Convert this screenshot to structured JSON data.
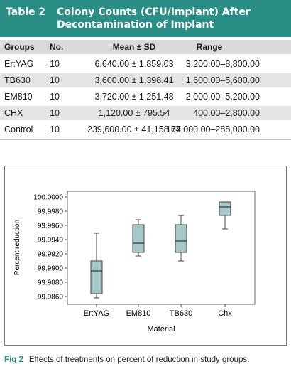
{
  "table": {
    "label": "Table 2",
    "title_line1": "Colony Counts (CFU/Implant) After",
    "title_line2": "Decontamination of Implant",
    "headers": {
      "groups": "Groups",
      "no": "No.",
      "mean": "Mean ± SD",
      "range": "Range"
    },
    "rows": [
      {
        "group": "Er:YAG",
        "no": "10",
        "mean": "6,640.00 ± 1,859.03",
        "range": "3,200.00–8,800.00"
      },
      {
        "group": "TB630",
        "no": "10",
        "mean": "3,600.00 ± 1,398.41",
        "range": "1,600.00–5,600.00"
      },
      {
        "group": "EM810",
        "no": "10",
        "mean": "3,720.00 ± 1,251.48",
        "range": "2,000.00–5,200.00"
      },
      {
        "group": "CHX",
        "no": "10",
        "mean": "1,120.00 ± 795.54",
        "range": "400.00–2,800.00"
      },
      {
        "group": "Control",
        "no": "10",
        "mean": "239,600.00 ± 41,158.77",
        "range": "164,000.00–288,000.00"
      }
    ]
  },
  "figure": {
    "label": "Fig 2",
    "caption": "Effects of treatments on percent of reduction in study groups."
  },
  "chart_data": {
    "type": "box",
    "xlabel": "Material",
    "ylabel": "Percent reduction",
    "ylim": [
      99.985,
      100.0
    ],
    "yticks": [
      "100.0000",
      "99.9980",
      "99.9960",
      "99.9940",
      "99.9920",
      "99.9900",
      "99.9880",
      "99.9860"
    ],
    "ytick_values": [
      100.0,
      99.998,
      99.996,
      99.994,
      99.992,
      99.99,
      99.988,
      99.986
    ],
    "box_color": "#a7c8c8",
    "categories": [
      "Er:YAG",
      "EM810",
      "TB630",
      "Chx"
    ],
    "boxes": [
      {
        "min": 99.9858,
        "q1": 99.9864,
        "median": 99.9896,
        "q3": 99.991,
        "max": 99.9949
      },
      {
        "min": 99.9917,
        "q1": 99.9922,
        "median": 99.9935,
        "q3": 99.9961,
        "max": 99.9968
      },
      {
        "min": 99.991,
        "q1": 99.9922,
        "median": 99.9938,
        "q3": 99.9961,
        "max": 99.9974
      },
      {
        "min": 99.9955,
        "q1": 99.9974,
        "median": 99.9986,
        "q3": 99.9993,
        "max": 99.9993
      }
    ]
  }
}
